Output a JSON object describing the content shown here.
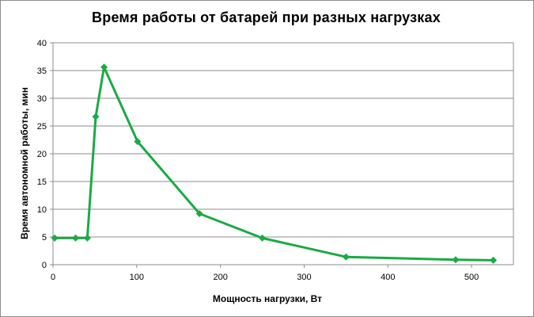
{
  "chart_data": {
    "type": "line",
    "title": "Время работы от батарей при разных нагрузках",
    "xlabel": "Мощность нагрузки, Вт",
    "ylabel": "Время автономной работы, мин",
    "xlim": [
      0,
      550
    ],
    "ylim": [
      0,
      40
    ],
    "x_ticks": [
      0,
      100,
      200,
      300,
      400,
      500
    ],
    "y_ticks": [
      0,
      5,
      10,
      15,
      20,
      25,
      30,
      35,
      40
    ],
    "grid": "horizontal",
    "legend": "none",
    "series": [
      {
        "color": "#1aaa44",
        "marker": "diamond",
        "points": [
          {
            "x": 2,
            "y": 4.8
          },
          {
            "x": 27,
            "y": 4.8
          },
          {
            "x": 41,
            "y": 4.8
          },
          {
            "x": 51,
            "y": 26.7
          },
          {
            "x": 61,
            "y": 35.6
          },
          {
            "x": 101,
            "y": 22.2
          },
          {
            "x": 175,
            "y": 9.2
          },
          {
            "x": 250,
            "y": 4.8
          },
          {
            "x": 350,
            "y": 1.4
          },
          {
            "x": 481,
            "y": 0.9
          },
          {
            "x": 526,
            "y": 0.8
          }
        ]
      }
    ]
  }
}
